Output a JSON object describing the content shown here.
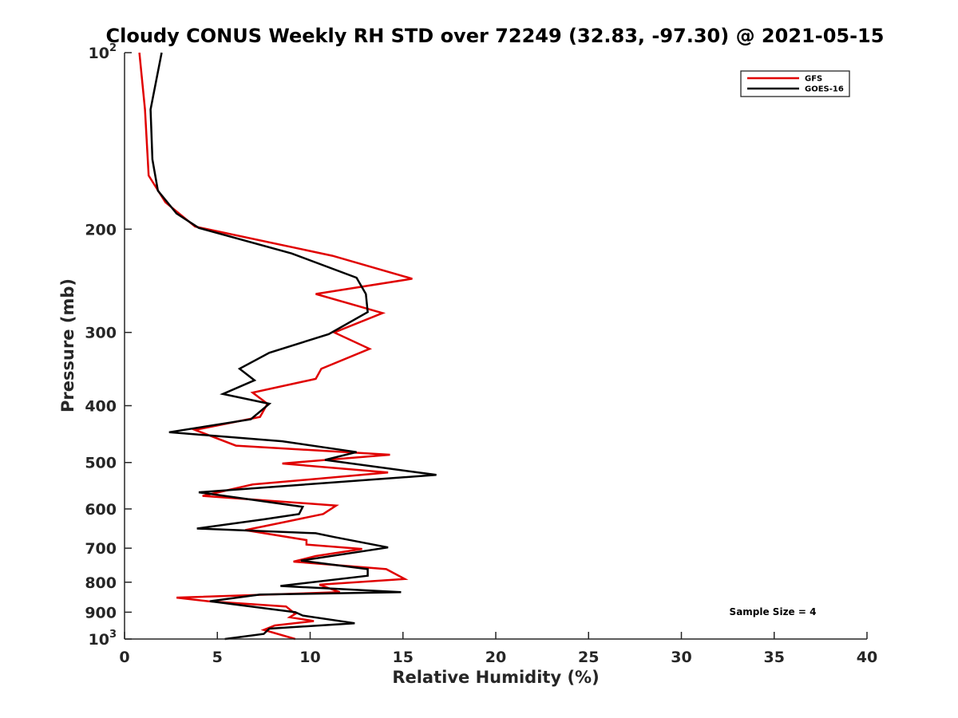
{
  "chart_data": {
    "type": "line",
    "title": "Cloudy CONUS Weekly RH STD over 72249 (32.83, -97.30) @ 2021-05-15",
    "xlabel": "Relative Humidity (%)",
    "ylabel": "Pressure (mb)",
    "xlim": [
      0,
      40
    ],
    "ylim": [
      100,
      1000
    ],
    "yscale": "log",
    "y_reversed": true,
    "grid": false,
    "legend_position": "top-right",
    "x_ticks": [
      "0",
      "5",
      "10",
      "15",
      "20",
      "25",
      "30",
      "35",
      "40"
    ],
    "x_tick_values": [
      0,
      5,
      10,
      15,
      20,
      25,
      30,
      35,
      40
    ],
    "y_ticks": [
      {
        "value": 100,
        "base": "10",
        "sup": "2"
      },
      {
        "value": 200,
        "base": "200",
        "sup": ""
      },
      {
        "value": 300,
        "base": "300",
        "sup": ""
      },
      {
        "value": 400,
        "base": "400",
        "sup": ""
      },
      {
        "value": 500,
        "base": "500",
        "sup": ""
      },
      {
        "value": 600,
        "base": "600",
        "sup": ""
      },
      {
        "value": 700,
        "base": "700",
        "sup": ""
      },
      {
        "value": 800,
        "base": "800",
        "sup": ""
      },
      {
        "value": 900,
        "base": "900",
        "sup": ""
      },
      {
        "value": 1000,
        "base": "10",
        "sup": "3"
      }
    ],
    "annotation": "Sample Size = 4",
    "series": [
      {
        "name": "GFS",
        "color": "#e00000",
        "x": [
          0.8,
          1.1,
          1.3,
          2.2,
          3.8,
          11.2,
          15.5,
          10.3,
          13.9,
          11.3,
          13.2,
          10.6,
          10.3,
          6.9,
          7.7,
          7.3,
          3.8,
          6.0,
          14.3,
          8.5,
          14.2,
          6.9,
          4.2,
          11.4,
          10.7,
          8.6,
          6.5,
          9.8,
          9.8,
          12.8,
          10.3,
          9.1,
          14.1,
          15.1,
          10.5,
          11.6,
          2.8,
          4.5,
          8.7,
          9.2,
          8.9,
          10.2,
          8.1,
          7.5,
          9.2
        ],
        "y": [
          100,
          125,
          162,
          180,
          198,
          222,
          243,
          258,
          278,
          300,
          320,
          346,
          360,
          380,
          397,
          418,
          440,
          468,
          485,
          502,
          520,
          545,
          570,
          592,
          612,
          632,
          652,
          678,
          690,
          702,
          722,
          738,
          760,
          790,
          808,
          832,
          850,
          862,
          880,
          906,
          918,
          932,
          948,
          965,
          1000
        ]
      },
      {
        "name": "GOES-16",
        "color": "#000000",
        "x": [
          2.0,
          1.4,
          1.5,
          1.8,
          2.8,
          4.0,
          9.0,
          12.5,
          13.0,
          13.1,
          11.0,
          7.8,
          6.2,
          7.0,
          5.3,
          7.8,
          6.8,
          2.4,
          8.5,
          12.5,
          10.8,
          16.8,
          4.0,
          9.6,
          9.4,
          7.5,
          3.9,
          10.3,
          11.3,
          14.2,
          9.5,
          13.1,
          13.1,
          8.4,
          14.9,
          7.3,
          4.6,
          9.2,
          9.6,
          12.4,
          7.8,
          7.5,
          5.4
        ],
        "y": [
          100,
          125,
          152,
          172,
          188,
          199,
          220,
          242,
          258,
          277,
          302,
          325,
          346,
          362,
          382,
          397,
          422,
          444,
          460,
          480,
          495,
          525,
          562,
          595,
          612,
          625,
          648,
          660,
          670,
          698,
          735,
          760,
          780,
          812,
          832,
          840,
          862,
          900,
          912,
          940,
          960,
          980,
          1000
        ]
      }
    ]
  }
}
